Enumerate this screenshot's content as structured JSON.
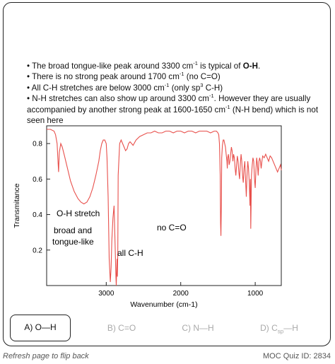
{
  "bullets": {
    "b1_pre": "• The broad tongue-like peak around 3300 cm",
    "b1_sup": "-1",
    "b1_mid": " is typical of ",
    "b1_bold": "O-H",
    "b1_end": ".",
    "b2_pre": "• There is no strong peak around 1700 cm",
    "b2_sup": "-1",
    "b2_end": " (no C=O)",
    "b3_pre": "• All C-H stretches are below 3000 cm",
    "b3_sup": "-1",
    "b3_mid": " (only sp",
    "b3_sup2": "3",
    "b3_end": " C-H)",
    "b4_pre": "• N-H stretches can also show up around 3300 cm",
    "b4_sup": "-1",
    "b4_mid": ". However they are usually accompanied by another strong peak at 1600-1650 cm",
    "b4_sup2": "-1",
    "b4_end": " (N-H bend) which is not seen here"
  },
  "chart_data": {
    "type": "line",
    "xlabel": "Wavenumber (cm-1)",
    "ylabel": "Transmitance",
    "xlim": [
      3800,
      650
    ],
    "ylim": [
      0.0,
      0.9
    ],
    "x_ticks": [
      3000,
      2000,
      1000
    ],
    "y_ticks": [
      0.8,
      0.6,
      0.4,
      0.2
    ],
    "grid": false,
    "line_color": "#e8504c",
    "annotations": [
      {
        "text": "O-H stretch"
      },
      {
        "text": "broad and"
      },
      {
        "text": "tongue-like"
      },
      {
        "text": "all C-H"
      },
      {
        "text": "no C=O"
      }
    ],
    "series": [
      {
        "x": [
          3800,
          3750,
          3700,
          3680,
          3660,
          3650,
          3640,
          3630,
          3610,
          3590,
          3560,
          3520,
          3480,
          3430,
          3380,
          3340,
          3300,
          3260,
          3220,
          3180,
          3140,
          3100,
          3080,
          3060,
          3040,
          3020,
          3000,
          2990,
          2975,
          2960,
          2945,
          2935,
          2925,
          2910,
          2895,
          2885,
          2870,
          2865,
          2855,
          2850,
          2845,
          2840,
          2820,
          2800,
          2780,
          2760,
          2740,
          2720,
          2700,
          2680,
          2660,
          2640,
          2600,
          2550,
          2500,
          2450,
          2400,
          2350,
          2300,
          2250,
          2200,
          2150,
          2100,
          2050,
          2000,
          1950,
          1900,
          1850,
          1800,
          1750,
          1700,
          1650,
          1600,
          1550,
          1520,
          1500,
          1490,
          1480,
          1470,
          1465,
          1460,
          1455,
          1450,
          1440,
          1430,
          1420,
          1410,
          1400,
          1390,
          1380,
          1375,
          1370,
          1360,
          1350,
          1340,
          1330,
          1320,
          1310,
          1300,
          1290,
          1280,
          1270,
          1260,
          1250,
          1240,
          1230,
          1220,
          1210,
          1200,
          1190,
          1180,
          1170,
          1160,
          1150,
          1140,
          1130,
          1120,
          1110,
          1100,
          1090,
          1080,
          1070,
          1065,
          1060,
          1055,
          1050,
          1040,
          1030,
          1020,
          1010,
          1000,
          990,
          980,
          970,
          960,
          950,
          940,
          930,
          920,
          910,
          900,
          880,
          860,
          840,
          820,
          800,
          780,
          760,
          740,
          720,
          700,
          680,
          660,
          650
        ],
        "y": [
          0.88,
          0.88,
          0.87,
          0.85,
          0.8,
          0.72,
          0.64,
          0.75,
          0.8,
          0.78,
          0.73,
          0.66,
          0.59,
          0.53,
          0.49,
          0.47,
          0.46,
          0.47,
          0.5,
          0.55,
          0.62,
          0.7,
          0.76,
          0.8,
          0.82,
          0.82,
          0.8,
          0.72,
          0.5,
          0.15,
          0.02,
          0.1,
          0.25,
          0.38,
          0.45,
          0.3,
          0.05,
          0.0,
          0.15,
          0.05,
          0.2,
          0.62,
          0.8,
          0.82,
          0.8,
          0.78,
          0.76,
          0.77,
          0.8,
          0.81,
          0.8,
          0.79,
          0.82,
          0.84,
          0.85,
          0.86,
          0.86,
          0.87,
          0.86,
          0.86,
          0.87,
          0.87,
          0.86,
          0.87,
          0.87,
          0.86,
          0.87,
          0.87,
          0.86,
          0.87,
          0.87,
          0.87,
          0.86,
          0.87,
          0.87,
          0.86,
          0.85,
          0.8,
          0.62,
          0.35,
          0.28,
          0.45,
          0.72,
          0.79,
          0.82,
          0.82,
          0.8,
          0.78,
          0.74,
          0.7,
          0.66,
          0.72,
          0.74,
          0.68,
          0.7,
          0.74,
          0.78,
          0.76,
          0.7,
          0.74,
          0.72,
          0.66,
          0.62,
          0.68,
          0.73,
          0.7,
          0.64,
          0.6,
          0.68,
          0.74,
          0.7,
          0.62,
          0.58,
          0.66,
          0.7,
          0.6,
          0.5,
          0.62,
          0.7,
          0.66,
          0.58,
          0.45,
          0.6,
          0.32,
          0.46,
          0.62,
          0.68,
          0.72,
          0.7,
          0.6,
          0.55,
          0.66,
          0.72,
          0.68,
          0.62,
          0.7,
          0.72,
          0.7,
          0.66,
          0.7,
          0.73,
          0.72,
          0.74,
          0.72,
          0.7,
          0.73,
          0.72,
          0.7,
          0.68,
          0.66,
          0.64,
          0.66,
          0.68,
          0.65
        ]
      }
    ]
  },
  "options": [
    {
      "label": "A) O—H",
      "selected": true
    },
    {
      "label_pre": "B) C=O",
      "selected": false
    },
    {
      "label": "C) N—H",
      "selected": false
    },
    {
      "label_pre": "D) C",
      "label_sub": "sp",
      "label_post": "—H",
      "selected": false
    }
  ],
  "footer": {
    "left": "Refresh page to flip back",
    "right": "MOC Quiz ID: 2834"
  }
}
